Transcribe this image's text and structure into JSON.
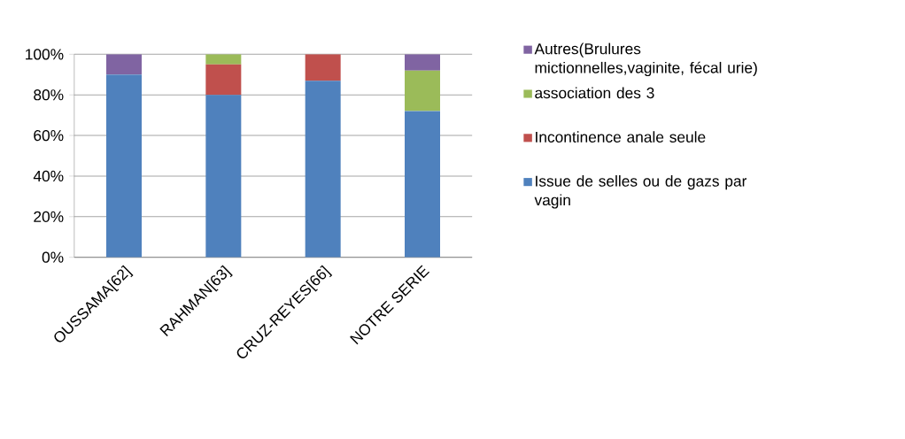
{
  "chart_data": {
    "type": "bar",
    "stacked": true,
    "categories": [
      "OUSSAMA[62]",
      "RAHMAN[63]",
      "CRUZ-REYES[66]",
      "NOTRE SERIE"
    ],
    "series": [
      {
        "name": "Issue de selles ou de gazs par vagin",
        "color": "#4f81bd",
        "values": [
          90,
          80,
          87,
          72
        ]
      },
      {
        "name": "Incontinence anale seule",
        "color": "#c0504d",
        "values": [
          0,
          15,
          13,
          0
        ]
      },
      {
        "name": "association des 3",
        "color": "#9bbb59",
        "values": [
          0,
          5,
          0,
          20
        ]
      },
      {
        "name": "Autres(Brulures mictionnelles,vaginite, fécal urie)",
        "color": "#8064a2",
        "values": [
          10,
          0,
          0,
          8
        ]
      }
    ],
    "ylim": [
      0,
      100
    ],
    "yticks": [
      {
        "value": 0,
        "label": "0%"
      },
      {
        "value": 20,
        "label": "20%"
      },
      {
        "value": 40,
        "label": "40%"
      },
      {
        "value": 60,
        "label": "60%"
      },
      {
        "value": 80,
        "label": "80%"
      },
      {
        "value": 100,
        "label": "100%"
      }
    ],
    "grid": "y",
    "legend": "right"
  }
}
